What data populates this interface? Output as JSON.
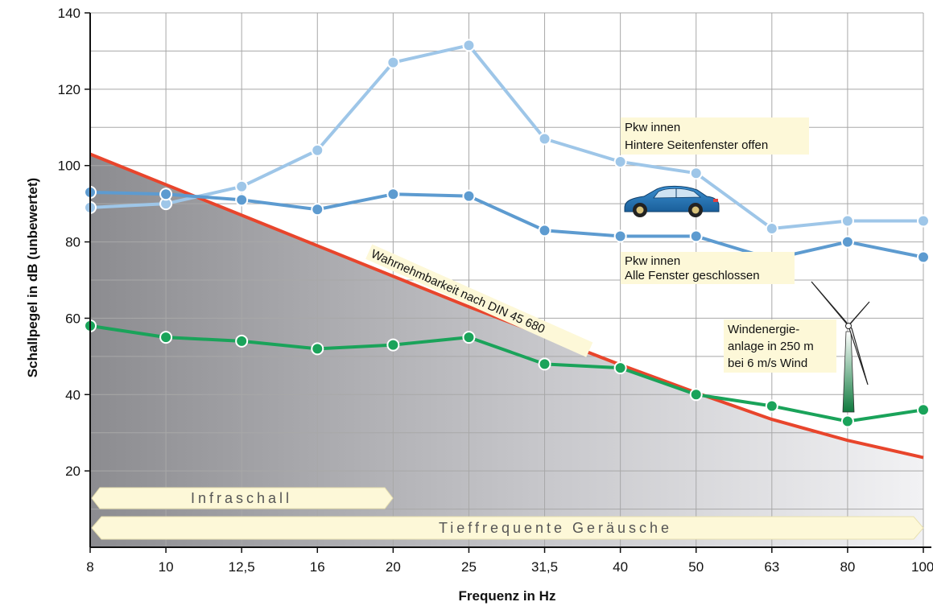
{
  "chart_data": {
    "type": "line",
    "xlabel": "Frequenz in Hz",
    "ylabel": "Schallpegel in dB (unbewertet)",
    "categories": [
      "8",
      "10",
      "12,5",
      "16",
      "20",
      "25",
      "31,5",
      "40",
      "50",
      "63",
      "80",
      "100"
    ],
    "ylim": [
      0,
      140
    ],
    "yticks": [
      20,
      40,
      60,
      80,
      100,
      120,
      140
    ],
    "grid": true,
    "series": [
      {
        "name": "Pkw innen – Hintere Seitenfenster offen",
        "color": "#9ec6e8",
        "values": [
          89,
          90,
          94.5,
          104,
          127,
          131.5,
          107,
          101,
          98,
          83.5,
          85.5,
          85.5
        ]
      },
      {
        "name": "Pkw innen – Alle Fenster geschlossen",
        "color": "#5d9bd0",
        "values": [
          93,
          92.5,
          91,
          88.5,
          92.5,
          92,
          83,
          81.5,
          81.5,
          75.5,
          80,
          76
        ]
      },
      {
        "name": "Windenergieanlage in 250 m bei 6 m/s Wind",
        "color": "#1aa35a",
        "values": [
          58,
          55,
          54,
          52,
          53,
          55,
          48,
          47,
          40,
          37,
          33,
          36
        ]
      }
    ],
    "threshold": {
      "name": "Wahrnehmbarkeit nach DIN 45 680",
      "color": "#e8452c",
      "values": [
        103,
        95,
        87,
        79,
        71,
        63,
        55.5,
        47.8,
        40.5,
        33.5,
        28,
        23.5
      ]
    },
    "annotations": {
      "pkw_open": [
        "Pkw innen",
        "Hintere Seitenfenster offen"
      ],
      "pkw_closed": [
        "Pkw innen",
        "Alle Fenster geschlossen"
      ],
      "wind": [
        "Windenergie-",
        "anlage in 250 m",
        "bei 6 m/s Wind"
      ],
      "threshold_label": "Wahrnehmbarkeit nach DIN 45 680"
    },
    "bands": {
      "infraschall": "Infraschall",
      "tieffrequent": "Tieffrequente Geräusche"
    },
    "icons": [
      "car-icon",
      "wind-turbine-icon"
    ]
  }
}
